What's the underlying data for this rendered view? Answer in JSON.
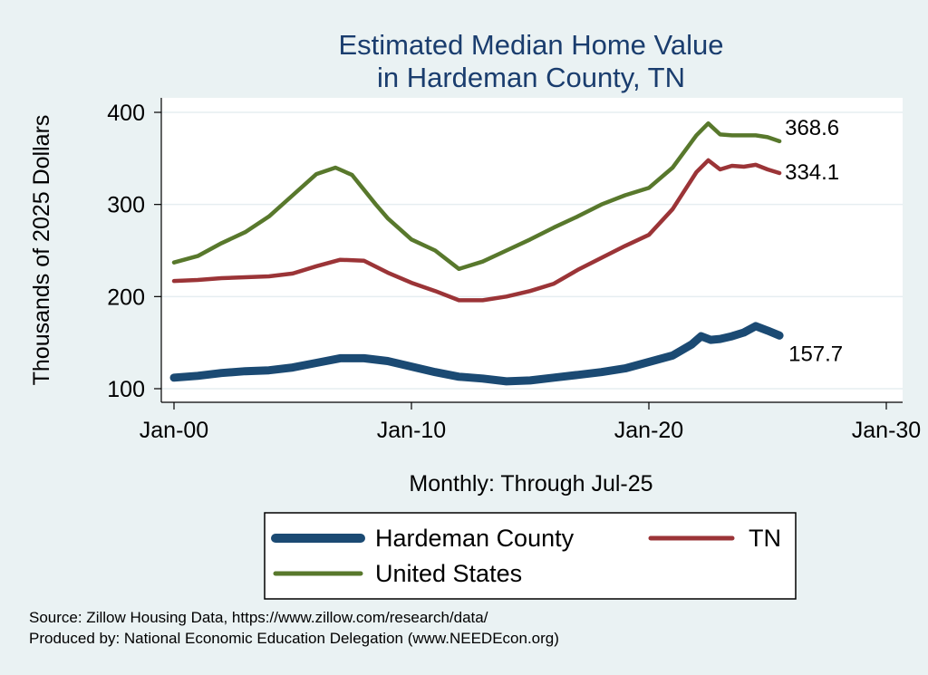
{
  "chart_data": {
    "type": "line",
    "title_lines": [
      "Estimated Median Home Value",
      "in Hardeman County, TN"
    ],
    "xlabel": "Monthly: Through Jul-25",
    "ylabel": "Thousands of 2025 Dollars",
    "x_ticks": [
      "Jan-00",
      "Jan-10",
      "Jan-20",
      "Jan-30"
    ],
    "y_ticks": [
      "100",
      "200",
      "300",
      "400"
    ],
    "xlim": [
      2000,
      2030
    ],
    "ylim": [
      90,
      415
    ],
    "grid": true,
    "legend_position": "bottom",
    "series": [
      {
        "name": "Hardeman County",
        "color": "#1b4a73",
        "end_label": "157.7",
        "points": [
          [
            2000.0,
            112
          ],
          [
            2001.0,
            114
          ],
          [
            2002.0,
            117
          ],
          [
            2003.0,
            119
          ],
          [
            2004.0,
            120
          ],
          [
            2005.0,
            123
          ],
          [
            2006.0,
            128
          ],
          [
            2007.0,
            133
          ],
          [
            2008.0,
            133
          ],
          [
            2009.0,
            130
          ],
          [
            2010.0,
            124
          ],
          [
            2011.0,
            118
          ],
          [
            2012.0,
            113
          ],
          [
            2013.0,
            111
          ],
          [
            2014.0,
            108
          ],
          [
            2015.0,
            109
          ],
          [
            2016.0,
            112
          ],
          [
            2017.0,
            115
          ],
          [
            2018.0,
            118
          ],
          [
            2019.0,
            122
          ],
          [
            2020.0,
            129
          ],
          [
            2021.0,
            136
          ],
          [
            2021.8,
            148
          ],
          [
            2022.2,
            157
          ],
          [
            2022.6,
            153
          ],
          [
            2023.0,
            154
          ],
          [
            2023.5,
            157
          ],
          [
            2024.0,
            161
          ],
          [
            2024.5,
            168
          ],
          [
            2025.0,
            163
          ],
          [
            2025.5,
            157.7
          ]
        ]
      },
      {
        "name": "TN",
        "color": "#9b3437",
        "end_label": "334.1",
        "points": [
          [
            2000.0,
            217
          ],
          [
            2001.0,
            218
          ],
          [
            2002.0,
            220
          ],
          [
            2003.0,
            221
          ],
          [
            2004.0,
            222
          ],
          [
            2005.0,
            225
          ],
          [
            2006.0,
            233
          ],
          [
            2007.0,
            240
          ],
          [
            2008.0,
            239
          ],
          [
            2009.0,
            226
          ],
          [
            2010.0,
            215
          ],
          [
            2011.0,
            206
          ],
          [
            2012.0,
            196
          ],
          [
            2013.0,
            196
          ],
          [
            2014.0,
            200
          ],
          [
            2015.0,
            206
          ],
          [
            2016.0,
            214
          ],
          [
            2017.0,
            229
          ],
          [
            2018.0,
            242
          ],
          [
            2019.0,
            255
          ],
          [
            2020.0,
            267
          ],
          [
            2021.0,
            295
          ],
          [
            2022.0,
            335
          ],
          [
            2022.5,
            348
          ],
          [
            2023.0,
            338
          ],
          [
            2023.5,
            342
          ],
          [
            2024.0,
            341
          ],
          [
            2024.5,
            343
          ],
          [
            2025.0,
            338
          ],
          [
            2025.5,
            334.1
          ]
        ]
      },
      {
        "name": "United States",
        "color": "#58782c",
        "end_label": "368.6",
        "points": [
          [
            2000.0,
            237
          ],
          [
            2001.0,
            244
          ],
          [
            2002.0,
            258
          ],
          [
            2003.0,
            270
          ],
          [
            2004.0,
            287
          ],
          [
            2005.0,
            310
          ],
          [
            2006.0,
            333
          ],
          [
            2006.8,
            340
          ],
          [
            2007.5,
            332
          ],
          [
            2008.5,
            300
          ],
          [
            2009.0,
            285
          ],
          [
            2010.0,
            262
          ],
          [
            2011.0,
            250
          ],
          [
            2012.0,
            230
          ],
          [
            2013.0,
            238
          ],
          [
            2014.0,
            250
          ],
          [
            2015.0,
            262
          ],
          [
            2016.0,
            275
          ],
          [
            2017.0,
            287
          ],
          [
            2018.0,
            300
          ],
          [
            2019.0,
            310
          ],
          [
            2020.0,
            318
          ],
          [
            2021.0,
            340
          ],
          [
            2022.0,
            375
          ],
          [
            2022.5,
            388
          ],
          [
            2023.0,
            376
          ],
          [
            2023.5,
            375
          ],
          [
            2024.0,
            375
          ],
          [
            2024.5,
            375
          ],
          [
            2025.0,
            373
          ],
          [
            2025.5,
            368.6
          ]
        ]
      }
    ],
    "legend_entries": [
      "Hardeman County",
      "TN",
      "United States"
    ]
  },
  "source_lines": [
    "Source: Zillow Housing Data, https://www.zillow.com/research/data/",
    "Produced by: National Economic Education Delegation (www.NEEDEcon.org)"
  ]
}
